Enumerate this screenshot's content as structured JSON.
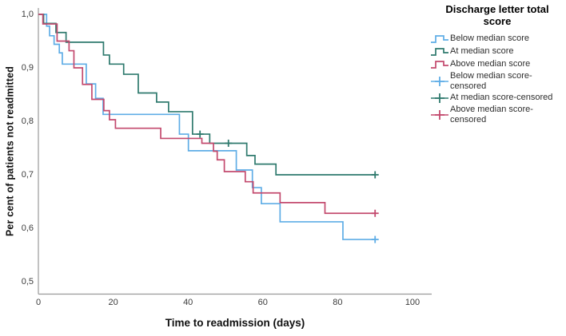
{
  "page": {
    "background": "#ffffff"
  },
  "chart_data": {
    "type": "line",
    "subtype": "kaplan-meier-step",
    "title": "",
    "xlabel": "Time to readmission (days)",
    "ylabel": "Per cent of patients not readmitted",
    "xaxis": {
      "min": 0,
      "max": 100,
      "ticks": [
        {
          "v": 0,
          "label": "0"
        },
        {
          "v": 20,
          "label": "20"
        },
        {
          "v": 40,
          "label": "40"
        },
        {
          "v": 60,
          "label": "60"
        },
        {
          "v": 80,
          "label": "80"
        },
        {
          "v": 100,
          "label": "100"
        }
      ]
    },
    "yaxis": {
      "min": 0.5,
      "max": 1.0,
      "ticks": [
        {
          "v": 1.0,
          "label": "1,0"
        },
        {
          "v": 0.9,
          "label": "0,9"
        },
        {
          "v": 0.8,
          "label": "0,8"
        },
        {
          "v": 0.7,
          "label": "0,7"
        },
        {
          "v": 0.6,
          "label": "0,6"
        },
        {
          "v": 0.5,
          "label": "0,5"
        }
      ]
    },
    "grid": false,
    "axis_color": "#9a9a9a",
    "series": [
      {
        "id": "below-median",
        "name": "Below median score",
        "color": "#5FADE6",
        "end": 90,
        "points": [
          [
            0,
            1.0
          ],
          [
            2.2,
            0.978
          ],
          [
            3.0,
            0.96
          ],
          [
            4.2,
            0.944
          ],
          [
            5.6,
            0.928
          ],
          [
            6.4,
            0.907
          ],
          [
            12.8,
            0.87
          ],
          [
            15.3,
            0.843
          ],
          [
            17.3,
            0.813
          ],
          [
            37.7,
            0.776
          ],
          [
            40.1,
            0.745
          ],
          [
            52.9,
            0.709
          ],
          [
            57.2,
            0.676
          ],
          [
            59.6,
            0.646
          ],
          [
            64.6,
            0.612
          ],
          [
            81.4,
            0.579
          ]
        ],
        "censored": [
          [
            90,
            0.579
          ]
        ]
      },
      {
        "id": "at-median",
        "name": "At median score",
        "color": "#2F7A6E",
        "end": 90,
        "points": [
          [
            0,
            1.0
          ],
          [
            1.4,
            0.983
          ],
          [
            4.7,
            0.966
          ],
          [
            7.4,
            0.948
          ],
          [
            17.4,
            0.924
          ],
          [
            19.0,
            0.907
          ],
          [
            22.8,
            0.888
          ],
          [
            26.7,
            0.853
          ],
          [
            31.6,
            0.836
          ],
          [
            34.8,
            0.818
          ],
          [
            41.2,
            0.776
          ],
          [
            45.8,
            0.759
          ],
          [
            55.7,
            0.736
          ],
          [
            57.9,
            0.72
          ],
          [
            63.5,
            0.7
          ]
        ],
        "censored": [
          [
            43.2,
            0.776
          ],
          [
            50.8,
            0.759
          ],
          [
            90,
            0.7
          ]
        ]
      },
      {
        "id": "above-median",
        "name": "Above median score",
        "color": "#C34A6E",
        "end": 90,
        "points": [
          [
            0,
            1.0
          ],
          [
            1.2,
            0.982
          ],
          [
            5.0,
            0.95
          ],
          [
            8.2,
            0.932
          ],
          [
            9.5,
            0.9
          ],
          [
            11.8,
            0.869
          ],
          [
            14.3,
            0.841
          ],
          [
            17.5,
            0.82
          ],
          [
            19.0,
            0.803
          ],
          [
            20.6,
            0.787
          ],
          [
            32.7,
            0.768
          ],
          [
            43.7,
            0.759
          ],
          [
            46.8,
            0.744
          ],
          [
            47.8,
            0.728
          ],
          [
            49.7,
            0.706
          ],
          [
            55.3,
            0.687
          ],
          [
            57.4,
            0.666
          ],
          [
            64.6,
            0.648
          ],
          [
            76.6,
            0.628
          ]
        ],
        "censored": [
          [
            90,
            0.628
          ]
        ]
      }
    ],
    "legend": {
      "title": "Discharge letter total score",
      "position": "right",
      "items": [
        {
          "id": "below-median",
          "label": "Below median score",
          "color": "#5FADE6",
          "swatch": "step"
        },
        {
          "id": "at-median",
          "label": "At median score",
          "color": "#2F7A6E",
          "swatch": "step"
        },
        {
          "id": "above-median",
          "label": "Above median score",
          "color": "#C34A6E",
          "swatch": "step"
        },
        {
          "id": "below-median-censored",
          "label": "Below median score-censored",
          "color": "#5FADE6",
          "swatch": "censor"
        },
        {
          "id": "at-median-censored",
          "label": "At median score-censored",
          "color": "#2F7A6E",
          "swatch": "censor"
        },
        {
          "id": "above-median-censored",
          "label": "Above median score-censored",
          "color": "#C34A6E",
          "swatch": "censor"
        }
      ]
    }
  }
}
